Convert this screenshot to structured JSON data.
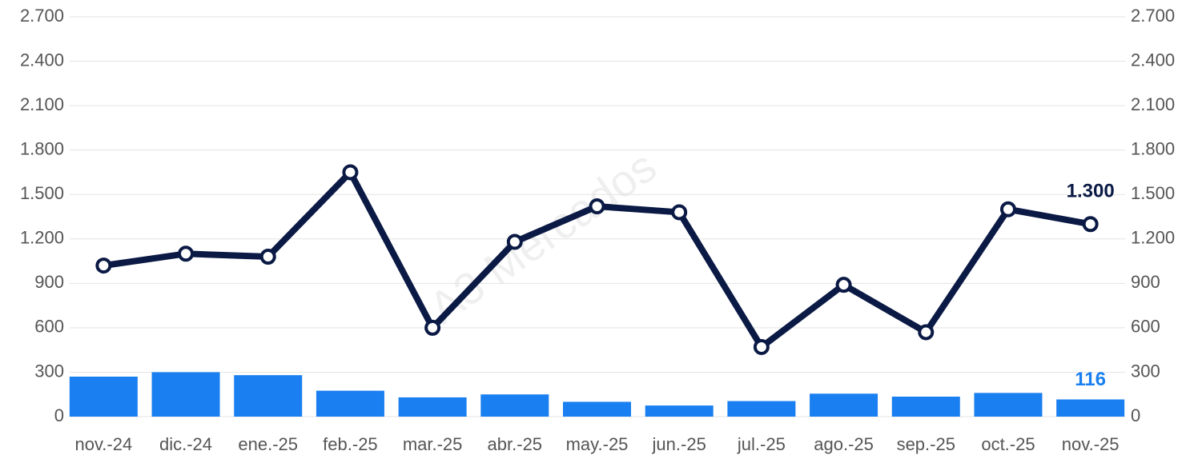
{
  "chart_data": {
    "type": "bar+line",
    "watermark": "A3 Mercados",
    "categories": [
      "nov.-24",
      "dic.-24",
      "ene.-25",
      "feb.-25",
      "mar.-25",
      "abr.-25",
      "may.-25",
      "jun.-25",
      "jul.-25",
      "ago.-25",
      "sep.-25",
      "oct.-25",
      "nov.-25"
    ],
    "series": [
      {
        "type": "bar",
        "color": "#1a7ff0",
        "values": [
          270,
          300,
          280,
          175,
          130,
          150,
          100,
          75,
          105,
          155,
          135,
          160,
          116
        ],
        "value_labels": [
          null,
          null,
          null,
          null,
          null,
          null,
          null,
          null,
          null,
          null,
          null,
          null,
          "116"
        ]
      },
      {
        "type": "line",
        "color": "#0b1a45",
        "axis": "y2",
        "values": [
          1020,
          1100,
          1080,
          1650,
          600,
          1180,
          1420,
          1380,
          470,
          890,
          570,
          1400,
          1300
        ],
        "value_labels": [
          null,
          null,
          null,
          null,
          null,
          null,
          null,
          null,
          null,
          null,
          null,
          null,
          "1.300"
        ]
      }
    ],
    "ylim": [
      0,
      2700
    ],
    "yticks": [
      0,
      300,
      600,
      900,
      {
        "value": 1200,
        "label": "1.200"
      },
      {
        "value": 1500,
        "label": "1.500"
      },
      {
        "value": 1800,
        "label": "1.800"
      },
      {
        "value": 2100,
        "label": "2.100"
      },
      {
        "value": 2400,
        "label": "2.400"
      },
      {
        "value": 2700,
        "label": "2.700"
      }
    ],
    "y2lim": [
      0,
      2700
    ],
    "y2ticks": [
      0,
      300,
      600,
      900,
      {
        "value": 1200,
        "label": "1.200"
      },
      {
        "value": 1500,
        "label": "1.500"
      },
      {
        "value": 1800,
        "label": "1.800"
      },
      {
        "value": 2100,
        "label": "2.100"
      },
      {
        "value": 2400,
        "label": "2.400"
      },
      {
        "value": 2700,
        "label": "2.700"
      }
    ],
    "grid": true
  }
}
